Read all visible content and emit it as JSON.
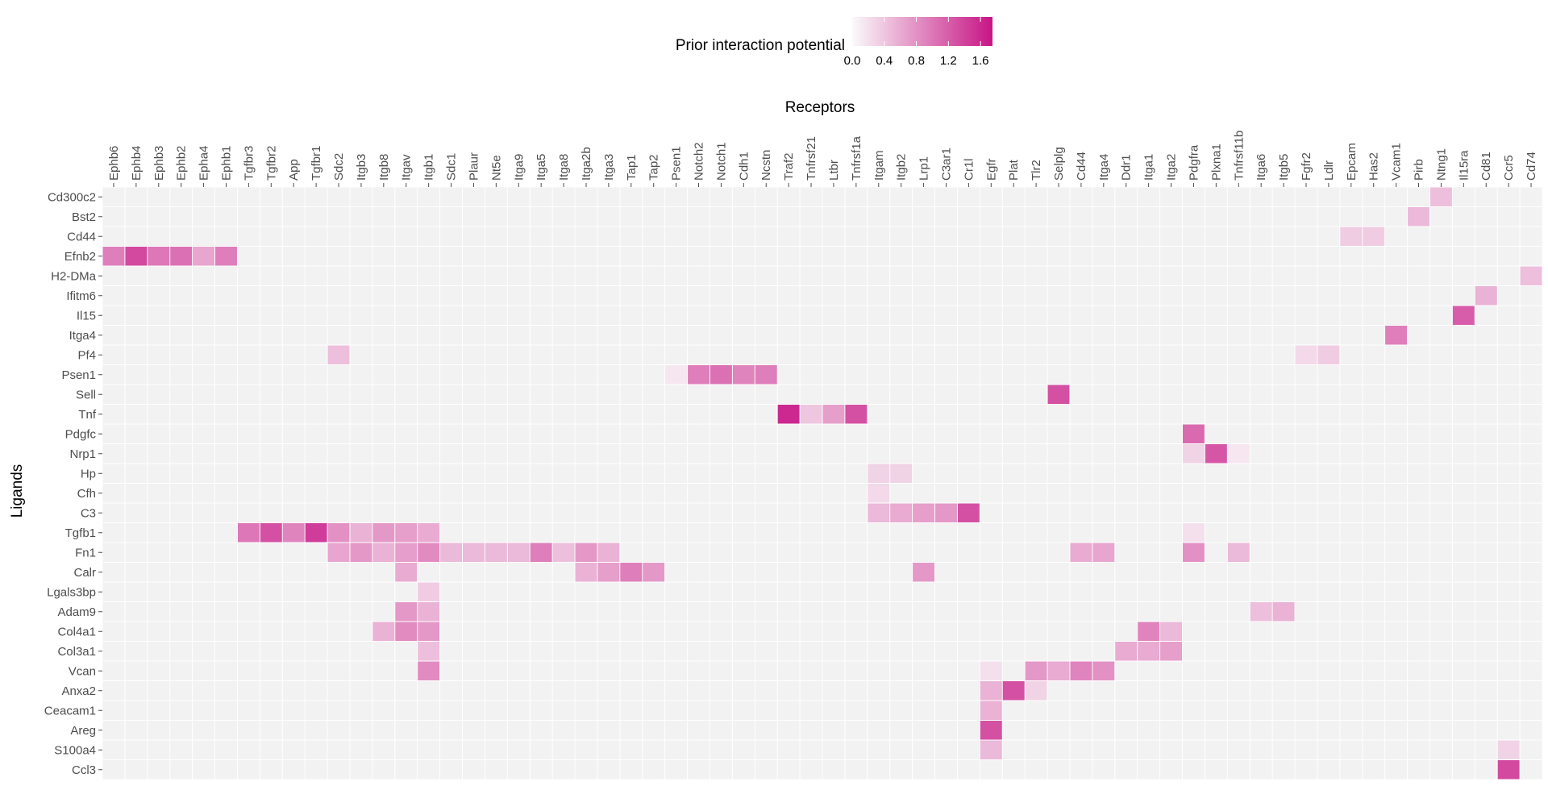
{
  "chart_data": {
    "type": "heatmap",
    "xlabel": "Receptors",
    "ylabel": "Ligands",
    "legend": {
      "title": "Prior interaction potential",
      "ticks": [
        "0.0",
        "0.4",
        "0.8",
        "1.2",
        "1.6"
      ],
      "range": [
        0,
        1.75
      ],
      "placement": "top",
      "color_low": "#fafafa",
      "color_high": "#c71585"
    },
    "background_color": "#f2f2f2",
    "receptors": [
      "Ephb6",
      "Ephb4",
      "Ephb3",
      "Ephb2",
      "Epha4",
      "Ephb1",
      "Tgfbr3",
      "Tgfbr2",
      "App",
      "Tgfbr1",
      "Sdc2",
      "Itgb3",
      "Itgb8",
      "Itgav",
      "Itgb1",
      "Sdc1",
      "Plaur",
      "Nt5e",
      "Itga9",
      "Itga5",
      "Itga8",
      "Itga2b",
      "Itga3",
      "Tap1",
      "Tap2",
      "Psen1",
      "Notch2",
      "Notch1",
      "Cdh1",
      "Ncstn",
      "Traf2",
      "Tnfrsf21",
      "Ltbr",
      "Tnfrsf1a",
      "Itgam",
      "Itgb2",
      "Lrp1",
      "C3ar1",
      "Cr1l",
      "Egfr",
      "Plat",
      "Tlr2",
      "Selplg",
      "Cd44",
      "Itga4",
      "Ddr1",
      "Itga1",
      "Itga2",
      "Pdgfra",
      "Plxna1",
      "Tnfrsf11b",
      "Itga6",
      "Itgb5",
      "Fgfr2",
      "Ldlr",
      "Epcam",
      "Has2",
      "Vcam1",
      "Pirb",
      "Ntng1",
      "Il15ra",
      "Cd81",
      "Ccr5",
      "Cd74"
    ],
    "ligands": [
      "Cd300c2",
      "Bst2",
      "Cd44",
      "Efnb2",
      "H2-DMa",
      "Ifitm6",
      "Il15",
      "Itga4",
      "Pf4",
      "Psen1",
      "Sell",
      "Tnf",
      "Pdgfc",
      "Nrp1",
      "Hp",
      "Cfh",
      "C3",
      "Tgfb1",
      "Fn1",
      "Calr",
      "Lgals3bp",
      "Adam9",
      "Col4a1",
      "Col3a1",
      "Vcan",
      "Anxa2",
      "Ceacam1",
      "Areg",
      "S100a4",
      "Ccl3"
    ],
    "values": [
      {
        "ligand": "Cd300c2",
        "receptor": "Ntng1",
        "value": 0.45
      },
      {
        "ligand": "Bst2",
        "receptor": "Pirb",
        "value": 0.5
      },
      {
        "ligand": "Cd44",
        "receptor": "Epcam",
        "value": 0.35
      },
      {
        "ligand": "Cd44",
        "receptor": "Has2",
        "value": 0.35
      },
      {
        "ligand": "Efnb2",
        "receptor": "Ephb6",
        "value": 0.95
      },
      {
        "ligand": "Efnb2",
        "receptor": "Ephb4",
        "value": 1.35
      },
      {
        "ligand": "Efnb2",
        "receptor": "Ephb3",
        "value": 1.0
      },
      {
        "ligand": "Efnb2",
        "receptor": "Ephb2",
        "value": 1.05
      },
      {
        "ligand": "Efnb2",
        "receptor": "Epha4",
        "value": 0.65
      },
      {
        "ligand": "Efnb2",
        "receptor": "Ephb1",
        "value": 0.95
      },
      {
        "ligand": "H2-DMa",
        "receptor": "Cd74",
        "value": 0.45
      },
      {
        "ligand": "Ifitm6",
        "receptor": "Cd81",
        "value": 0.55
      },
      {
        "ligand": "Il15",
        "receptor": "Il15ra",
        "value": 1.2
      },
      {
        "ligand": "Itga4",
        "receptor": "Vcam1",
        "value": 0.95
      },
      {
        "ligand": "Pf4",
        "receptor": "Sdc2",
        "value": 0.45
      },
      {
        "ligand": "Pf4",
        "receptor": "Fgfr2",
        "value": 0.25
      },
      {
        "ligand": "Pf4",
        "receptor": "Ldlr",
        "value": 0.35
      },
      {
        "ligand": "Psen1",
        "receptor": "Psen1",
        "value": 0.15
      },
      {
        "ligand": "Psen1",
        "receptor": "Notch2",
        "value": 0.95
      },
      {
        "ligand": "Psen1",
        "receptor": "Notch1",
        "value": 1.05
      },
      {
        "ligand": "Psen1",
        "receptor": "Cdh1",
        "value": 0.9
      },
      {
        "ligand": "Psen1",
        "receptor": "Ncstn",
        "value": 0.95
      },
      {
        "ligand": "Sell",
        "receptor": "Selplg",
        "value": 1.3
      },
      {
        "ligand": "Tnf",
        "receptor": "Traf2",
        "value": 1.6
      },
      {
        "ligand": "Tnf",
        "receptor": "Tnfrsf21",
        "value": 0.4
      },
      {
        "ligand": "Tnf",
        "receptor": "Ltbr",
        "value": 0.7
      },
      {
        "ligand": "Tnf",
        "receptor": "Tnfrsf1a",
        "value": 1.3
      },
      {
        "ligand": "Pdgfc",
        "receptor": "Pdgfra",
        "value": 1.1
      },
      {
        "ligand": "Nrp1",
        "receptor": "Pdgfra",
        "value": 0.3
      },
      {
        "ligand": "Nrp1",
        "receptor": "Plxna1",
        "value": 1.25
      },
      {
        "ligand": "Nrp1",
        "receptor": "Tnfrsf11b",
        "value": 0.15
      },
      {
        "ligand": "Hp",
        "receptor": "Itgam",
        "value": 0.3
      },
      {
        "ligand": "Hp",
        "receptor": "Itgb2",
        "value": 0.3
      },
      {
        "ligand": "Cfh",
        "receptor": "Itgam",
        "value": 0.25
      },
      {
        "ligand": "C3",
        "receptor": "Itgam",
        "value": 0.5
      },
      {
        "ligand": "C3",
        "receptor": "Itgb2",
        "value": 0.6
      },
      {
        "ligand": "C3",
        "receptor": "Lrp1",
        "value": 0.7
      },
      {
        "ligand": "C3",
        "receptor": "C3ar1",
        "value": 0.75
      },
      {
        "ligand": "C3",
        "receptor": "Cr1l",
        "value": 1.3
      },
      {
        "ligand": "Tgfb1",
        "receptor": "Tgfbr3",
        "value": 1.0
      },
      {
        "ligand": "Tgfb1",
        "receptor": "Tgfbr2",
        "value": 1.3
      },
      {
        "ligand": "Tgfb1",
        "receptor": "App",
        "value": 0.9
      },
      {
        "ligand": "Tgfb1",
        "receptor": "Tgfbr1",
        "value": 1.45
      },
      {
        "ligand": "Tgfb1",
        "receptor": "Sdc2",
        "value": 0.8
      },
      {
        "ligand": "Tgfb1",
        "receptor": "Itgb3",
        "value": 0.55
      },
      {
        "ligand": "Tgfb1",
        "receptor": "Itgb8",
        "value": 0.75
      },
      {
        "ligand": "Tgfb1",
        "receptor": "Itgav",
        "value": 0.7
      },
      {
        "ligand": "Tgfb1",
        "receptor": "Itgb1",
        "value": 0.6
      },
      {
        "ligand": "Tgfb1",
        "receptor": "Pdgfra",
        "value": 0.2
      },
      {
        "ligand": "Fn1",
        "receptor": "Sdc2",
        "value": 0.65
      },
      {
        "ligand": "Fn1",
        "receptor": "Itgb3",
        "value": 0.75
      },
      {
        "ligand": "Fn1",
        "receptor": "Itgb8",
        "value": 0.55
      },
      {
        "ligand": "Fn1",
        "receptor": "Itgav",
        "value": 0.7
      },
      {
        "ligand": "Fn1",
        "receptor": "Itgb1",
        "value": 0.85
      },
      {
        "ligand": "Fn1",
        "receptor": "Sdc1",
        "value": 0.5
      },
      {
        "ligand": "Fn1",
        "receptor": "Plaur",
        "value": 0.5
      },
      {
        "ligand": "Fn1",
        "receptor": "Nt5e",
        "value": 0.5
      },
      {
        "ligand": "Fn1",
        "receptor": "Itga9",
        "value": 0.5
      },
      {
        "ligand": "Fn1",
        "receptor": "Itga5",
        "value": 0.95
      },
      {
        "ligand": "Fn1",
        "receptor": "Itga8",
        "value": 0.45
      },
      {
        "ligand": "Fn1",
        "receptor": "Itga2b",
        "value": 0.75
      },
      {
        "ligand": "Fn1",
        "receptor": "Itga3",
        "value": 0.55
      },
      {
        "ligand": "Fn1",
        "receptor": "Cd44",
        "value": 0.6
      },
      {
        "ligand": "Fn1",
        "receptor": "Itga4",
        "value": 0.65
      },
      {
        "ligand": "Fn1",
        "receptor": "Pdgfra",
        "value": 0.8
      },
      {
        "ligand": "Fn1",
        "receptor": "Tnfrsf11b",
        "value": 0.5
      },
      {
        "ligand": "Calr",
        "receptor": "Itgav",
        "value": 0.6
      },
      {
        "ligand": "Calr",
        "receptor": "Itga2b",
        "value": 0.55
      },
      {
        "ligand": "Calr",
        "receptor": "Itga3",
        "value": 0.7
      },
      {
        "ligand": "Calr",
        "receptor": "Tap1",
        "value": 0.95
      },
      {
        "ligand": "Calr",
        "receptor": "Tap2",
        "value": 0.75
      },
      {
        "ligand": "Calr",
        "receptor": "Lrp1",
        "value": 0.75
      },
      {
        "ligand": "Lgals3bp",
        "receptor": "Itgb1",
        "value": 0.35
      },
      {
        "ligand": "Adam9",
        "receptor": "Itgav",
        "value": 0.75
      },
      {
        "ligand": "Adam9",
        "receptor": "Itgb1",
        "value": 0.55
      },
      {
        "ligand": "Adam9",
        "receptor": "Itga6",
        "value": 0.45
      },
      {
        "ligand": "Adam9",
        "receptor": "Itgb5",
        "value": 0.55
      },
      {
        "ligand": "Col4a1",
        "receptor": "Itgb8",
        "value": 0.55
      },
      {
        "ligand": "Col4a1",
        "receptor": "Itgav",
        "value": 0.85
      },
      {
        "ligand": "Col4a1",
        "receptor": "Itgb1",
        "value": 0.75
      },
      {
        "ligand": "Col4a1",
        "receptor": "Itga1",
        "value": 0.9
      },
      {
        "ligand": "Col4a1",
        "receptor": "Itga2",
        "value": 0.5
      },
      {
        "ligand": "Col3a1",
        "receptor": "Itgb1",
        "value": 0.45
      },
      {
        "ligand": "Col3a1",
        "receptor": "Ddr1",
        "value": 0.6
      },
      {
        "ligand": "Col3a1",
        "receptor": "Itga1",
        "value": 0.6
      },
      {
        "ligand": "Col3a1",
        "receptor": "Itga2",
        "value": 0.7
      },
      {
        "ligand": "Vcan",
        "receptor": "Itgb1",
        "value": 0.85
      },
      {
        "ligand": "Vcan",
        "receptor": "Egfr",
        "value": 0.2
      },
      {
        "ligand": "Vcan",
        "receptor": "Tlr2",
        "value": 0.75
      },
      {
        "ligand": "Vcan",
        "receptor": "Selplg",
        "value": 0.6
      },
      {
        "ligand": "Vcan",
        "receptor": "Cd44",
        "value": 0.9
      },
      {
        "ligand": "Vcan",
        "receptor": "Itga4",
        "value": 0.8
      },
      {
        "ligand": "Anxa2",
        "receptor": "Egfr",
        "value": 0.55
      },
      {
        "ligand": "Anxa2",
        "receptor": "Plat",
        "value": 1.3
      },
      {
        "ligand": "Anxa2",
        "receptor": "Tlr2",
        "value": 0.3
      },
      {
        "ligand": "Ceacam1",
        "receptor": "Egfr",
        "value": 0.55
      },
      {
        "ligand": "Areg",
        "receptor": "Egfr",
        "value": 1.3
      },
      {
        "ligand": "S100a4",
        "receptor": "Egfr",
        "value": 0.5
      },
      {
        "ligand": "S100a4",
        "receptor": "Ccr5",
        "value": 0.3
      },
      {
        "ligand": "Ccl3",
        "receptor": "Ccr5",
        "value": 1.35
      }
    ]
  }
}
